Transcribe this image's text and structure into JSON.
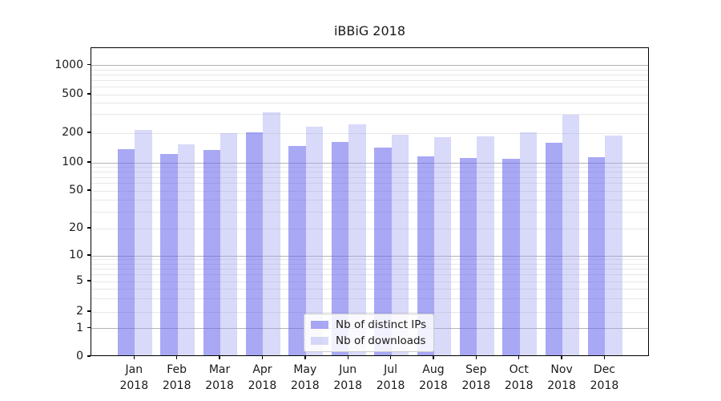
{
  "chart_data": {
    "type": "bar",
    "title": "iBBiG 2018",
    "categories": [
      {
        "month": "Jan",
        "year": "2018"
      },
      {
        "month": "Feb",
        "year": "2018"
      },
      {
        "month": "Mar",
        "year": "2018"
      },
      {
        "month": "Apr",
        "year": "2018"
      },
      {
        "month": "May",
        "year": "2018"
      },
      {
        "month": "Jun",
        "year": "2018"
      },
      {
        "month": "Jul",
        "year": "2018"
      },
      {
        "month": "Aug",
        "year": "2018"
      },
      {
        "month": "Sep",
        "year": "2018"
      },
      {
        "month": "Oct",
        "year": "2018"
      },
      {
        "month": "Nov",
        "year": "2018"
      },
      {
        "month": "Dec",
        "year": "2018"
      }
    ],
    "series": [
      {
        "name": "Nb of distinct IPs",
        "color": "rgba(100,100,237,0.56)",
        "values": [
          132,
          119,
          131,
          195,
          144,
          157,
          137,
          112,
          107,
          106,
          154,
          110
        ]
      },
      {
        "name": "Nb of downloads",
        "color": "rgba(160,160,240,0.40)",
        "values": [
          208,
          147,
          193,
          303,
          224,
          232,
          185,
          176,
          180,
          198,
          290,
          182
        ]
      }
    ],
    "yticks": [
      0,
      1,
      2,
      5,
      10,
      20,
      50,
      100,
      200,
      500,
      1000
    ],
    "ylim": [
      0,
      1500
    ],
    "yscale": "quasi-log (symlog-like, linear below 1)",
    "xlabel": "",
    "ylabel": "",
    "grid": "on",
    "legend_position": "lower center",
    "colors": {
      "major_grid": "#b4b4b4",
      "minor_grid": "#e7e7e7",
      "axis": "#000000",
      "text": "#1a1a1a"
    }
  }
}
